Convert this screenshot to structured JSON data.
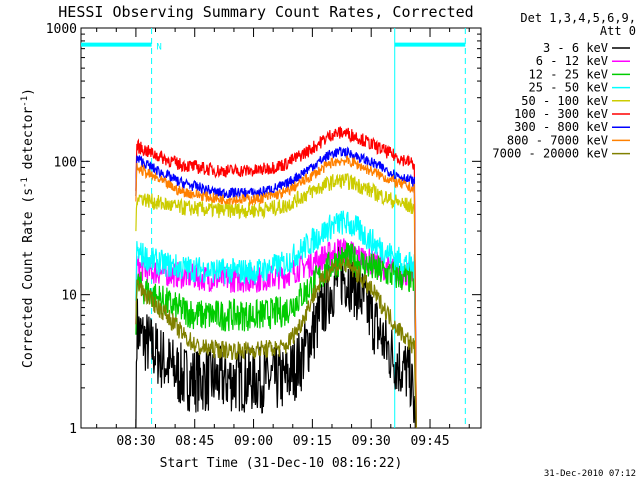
{
  "chart_data": {
    "type": "line",
    "title": "HESSI Observing Summary Count Rates, Corrected",
    "xlabel": "Start Time (31-Dec-10 08:16:22)",
    "ylabel_parts": [
      "Corrected Count Rate (s",
      "-1",
      " detector",
      "-1",
      ")"
    ],
    "yscale": "log",
    "ylim": [
      1,
      1000
    ],
    "xlim_minutes_after_0816": [
      0,
      102
    ],
    "x_tick_labels": [
      "08:30",
      "08:45",
      "09:00",
      "09:15",
      "09:30",
      "09:45"
    ],
    "x_tick_minutes": [
      14,
      29,
      44,
      59,
      74,
      89
    ],
    "y_tick_labels": [
      "1",
      "10",
      "100",
      "1000"
    ],
    "y_tick_values": [
      1,
      10,
      100,
      1000
    ],
    "legend_header": [
      "Det 1,3,4,5,6,9,",
      "Att 0"
    ],
    "legend_placement": "right",
    "footer_timestamp": "31-Dec-2010 07:12",
    "annotations": [
      {
        "type": "night_bar",
        "x_start_min": 0,
        "x_end_min": 18,
        "y": 750,
        "color": "#00ffff"
      },
      {
        "type": "night_bar",
        "x_start_min": 80,
        "x_end_min": 98,
        "y": 750,
        "color": "#00ffff"
      },
      {
        "type": "vline_solid",
        "x_min": 80,
        "color": "#00ffff"
      },
      {
        "type": "vline_dashed",
        "x_min": 18,
        "color": "#00ffff"
      },
      {
        "type": "vline_dashed",
        "x_min": 98,
        "color": "#00ffff"
      },
      {
        "type": "text",
        "text": "N",
        "x_min": 20,
        "y": 740,
        "color": "#00ffff"
      }
    ],
    "series": [
      {
        "name": "3 - 6 keV",
        "color": "#000000",
        "noise": 0.25,
        "points": [
          [
            14,
            1
          ],
          [
            14.2,
            6
          ],
          [
            15,
            5
          ],
          [
            18,
            4
          ],
          [
            22,
            3
          ],
          [
            26,
            2.4
          ],
          [
            30,
            2.3
          ],
          [
            40,
            2.3
          ],
          [
            52,
            2.3
          ],
          [
            56,
            3.2
          ],
          [
            60,
            6
          ],
          [
            63,
            10
          ],
          [
            66,
            14
          ],
          [
            69,
            13
          ],
          [
            72,
            9
          ],
          [
            75,
            6
          ],
          [
            78,
            4
          ],
          [
            81,
            3
          ],
          [
            84,
            2.5
          ],
          [
            85.5,
            1
          ]
        ]
      },
      {
        "name": "6 - 12 keV",
        "color": "#ff00ff",
        "noise": 0.1,
        "points": [
          [
            14,
            6
          ],
          [
            14.2,
            16
          ],
          [
            18,
            15
          ],
          [
            25,
            14
          ],
          [
            35,
            13
          ],
          [
            45,
            13
          ],
          [
            52,
            14
          ],
          [
            60,
            18
          ],
          [
            66,
            22
          ],
          [
            70,
            20
          ],
          [
            75,
            17
          ],
          [
            80,
            15
          ],
          [
            85,
            14
          ],
          [
            85.5,
            1
          ]
        ]
      },
      {
        "name": "12 - 25 keV",
        "color": "#00cc00",
        "noise": 0.12,
        "points": [
          [
            14,
            5
          ],
          [
            14.2,
            12
          ],
          [
            18,
            10
          ],
          [
            24,
            8
          ],
          [
            30,
            7
          ],
          [
            45,
            7
          ],
          [
            52,
            7.5
          ],
          [
            58,
            11
          ],
          [
            64,
            17
          ],
          [
            68,
            19
          ],
          [
            72,
            17
          ],
          [
            76,
            15
          ],
          [
            80,
            14
          ],
          [
            85,
            13
          ],
          [
            85.5,
            1
          ]
        ]
      },
      {
        "name": "25 - 50 keV",
        "color": "#00ffff",
        "noise": 0.1,
        "points": [
          [
            14,
            9
          ],
          [
            14.2,
            21
          ],
          [
            18,
            18
          ],
          [
            25,
            16
          ],
          [
            35,
            15
          ],
          [
            45,
            15
          ],
          [
            52,
            17
          ],
          [
            58,
            24
          ],
          [
            64,
            33
          ],
          [
            67,
            35
          ],
          [
            70,
            32
          ],
          [
            75,
            24
          ],
          [
            80,
            19
          ],
          [
            85,
            16
          ],
          [
            85.5,
            1
          ]
        ]
      },
      {
        "name": "50 - 100 keV",
        "color": "#cccc00",
        "noise": 0.06,
        "points": [
          [
            14,
            30
          ],
          [
            14.2,
            55
          ],
          [
            18,
            50
          ],
          [
            25,
            45
          ],
          [
            35,
            43
          ],
          [
            45,
            43
          ],
          [
            52,
            46
          ],
          [
            58,
            58
          ],
          [
            64,
            70
          ],
          [
            67,
            72
          ],
          [
            70,
            68
          ],
          [
            75,
            58
          ],
          [
            80,
            50
          ],
          [
            85,
            45
          ],
          [
            85.5,
            1
          ]
        ]
      },
      {
        "name": "100 - 300 keV",
        "color": "#ff0000",
        "noise": 0.05,
        "points": [
          [
            14,
            60
          ],
          [
            14.2,
            130
          ],
          [
            18,
            115
          ],
          [
            25,
            95
          ],
          [
            35,
            85
          ],
          [
            45,
            85
          ],
          [
            52,
            95
          ],
          [
            58,
            120
          ],
          [
            64,
            160
          ],
          [
            67,
            165
          ],
          [
            70,
            155
          ],
          [
            75,
            130
          ],
          [
            80,
            110
          ],
          [
            85,
            95
          ],
          [
            85.5,
            1
          ]
        ]
      },
      {
        "name": "300 - 800 keV",
        "color": "#0000ff",
        "noise": 0.04,
        "points": [
          [
            14,
            55
          ],
          [
            14.2,
            105
          ],
          [
            18,
            90
          ],
          [
            25,
            70
          ],
          [
            35,
            58
          ],
          [
            45,
            58
          ],
          [
            52,
            66
          ],
          [
            58,
            88
          ],
          [
            64,
            115
          ],
          [
            67,
            118
          ],
          [
            70,
            110
          ],
          [
            75,
            95
          ],
          [
            80,
            80
          ],
          [
            85,
            70
          ],
          [
            85.5,
            1
          ]
        ]
      },
      {
        "name": "800 - 7000 keV",
        "color": "#ff8000",
        "noise": 0.04,
        "points": [
          [
            14,
            50
          ],
          [
            14.2,
            90
          ],
          [
            18,
            78
          ],
          [
            25,
            60
          ],
          [
            35,
            52
          ],
          [
            45,
            52
          ],
          [
            52,
            58
          ],
          [
            58,
            75
          ],
          [
            64,
            98
          ],
          [
            67,
            102
          ],
          [
            70,
            96
          ],
          [
            75,
            82
          ],
          [
            80,
            70
          ],
          [
            85,
            62
          ],
          [
            85.5,
            1
          ]
        ]
      },
      {
        "name": "7000 - 20000 keV",
        "color": "#808000",
        "noise": 0.07,
        "points": [
          [
            14,
            6
          ],
          [
            14.2,
            12
          ],
          [
            18,
            9
          ],
          [
            22,
            7
          ],
          [
            26,
            5
          ],
          [
            30,
            4
          ],
          [
            40,
            3.8
          ],
          [
            52,
            4
          ],
          [
            56,
            6
          ],
          [
            60,
            11
          ],
          [
            64,
            16
          ],
          [
            67,
            17
          ],
          [
            70,
            15
          ],
          [
            75,
            10
          ],
          [
            80,
            6
          ],
          [
            85,
            4
          ],
          [
            85.5,
            1
          ]
        ]
      }
    ]
  }
}
